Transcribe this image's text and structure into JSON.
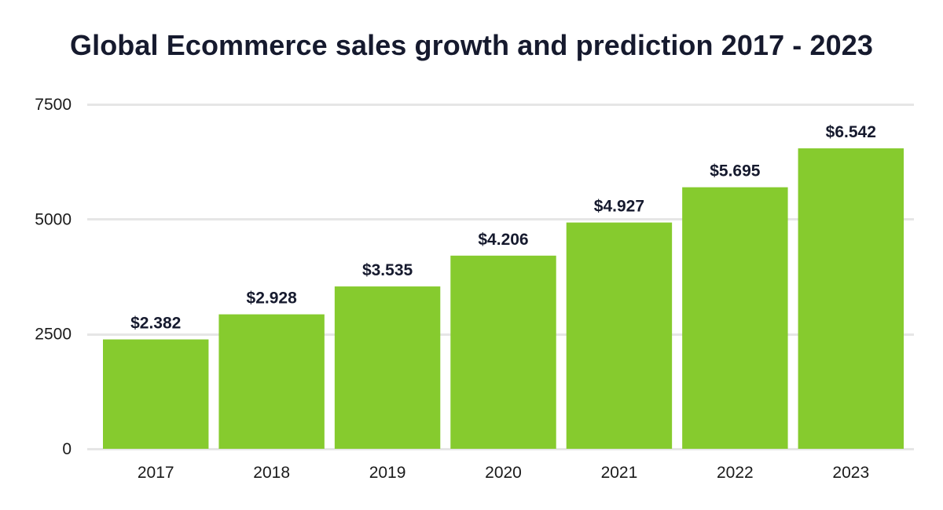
{
  "chart_data": {
    "type": "bar",
    "title": "Global Ecommerce sales growth and prediction 2017 - 2023",
    "xlabel": "",
    "ylabel": "",
    "categories": [
      "2017",
      "2018",
      "2019",
      "2020",
      "2021",
      "2022",
      "2023"
    ],
    "values": [
      2382,
      2928,
      3535,
      4206,
      4927,
      5695,
      6542
    ],
    "data_labels": [
      "$2.382",
      "$2.928",
      "$3.535",
      "$4.206",
      "$4.927",
      "$5.695",
      "$6.542"
    ],
    "ylim": [
      0,
      7500
    ],
    "yticks": [
      0,
      2500,
      5000,
      7500
    ],
    "grid": true,
    "legend": "none",
    "bar_color": "#86cb2e",
    "grid_color": "#e6e6e6",
    "title_color": "#161a2e"
  }
}
